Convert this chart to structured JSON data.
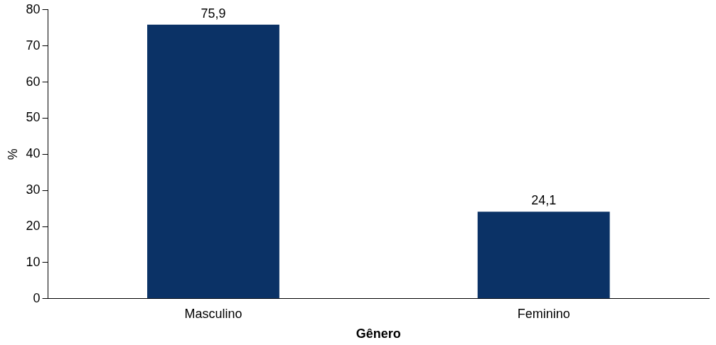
{
  "chart_data": {
    "type": "bar",
    "xlabel": "Gênero",
    "ylabel": "%",
    "categories": [
      "Masculino",
      "Feminino"
    ],
    "values": [
      75.9,
      24.1
    ],
    "value_labels": [
      "75,9",
      "24,1"
    ],
    "color": "#0b3266",
    "ylim": [
      0,
      80
    ],
    "yticks": [
      0,
      10,
      20,
      30,
      40,
      50,
      60,
      70,
      80
    ],
    "grid": false,
    "legend": false
  }
}
